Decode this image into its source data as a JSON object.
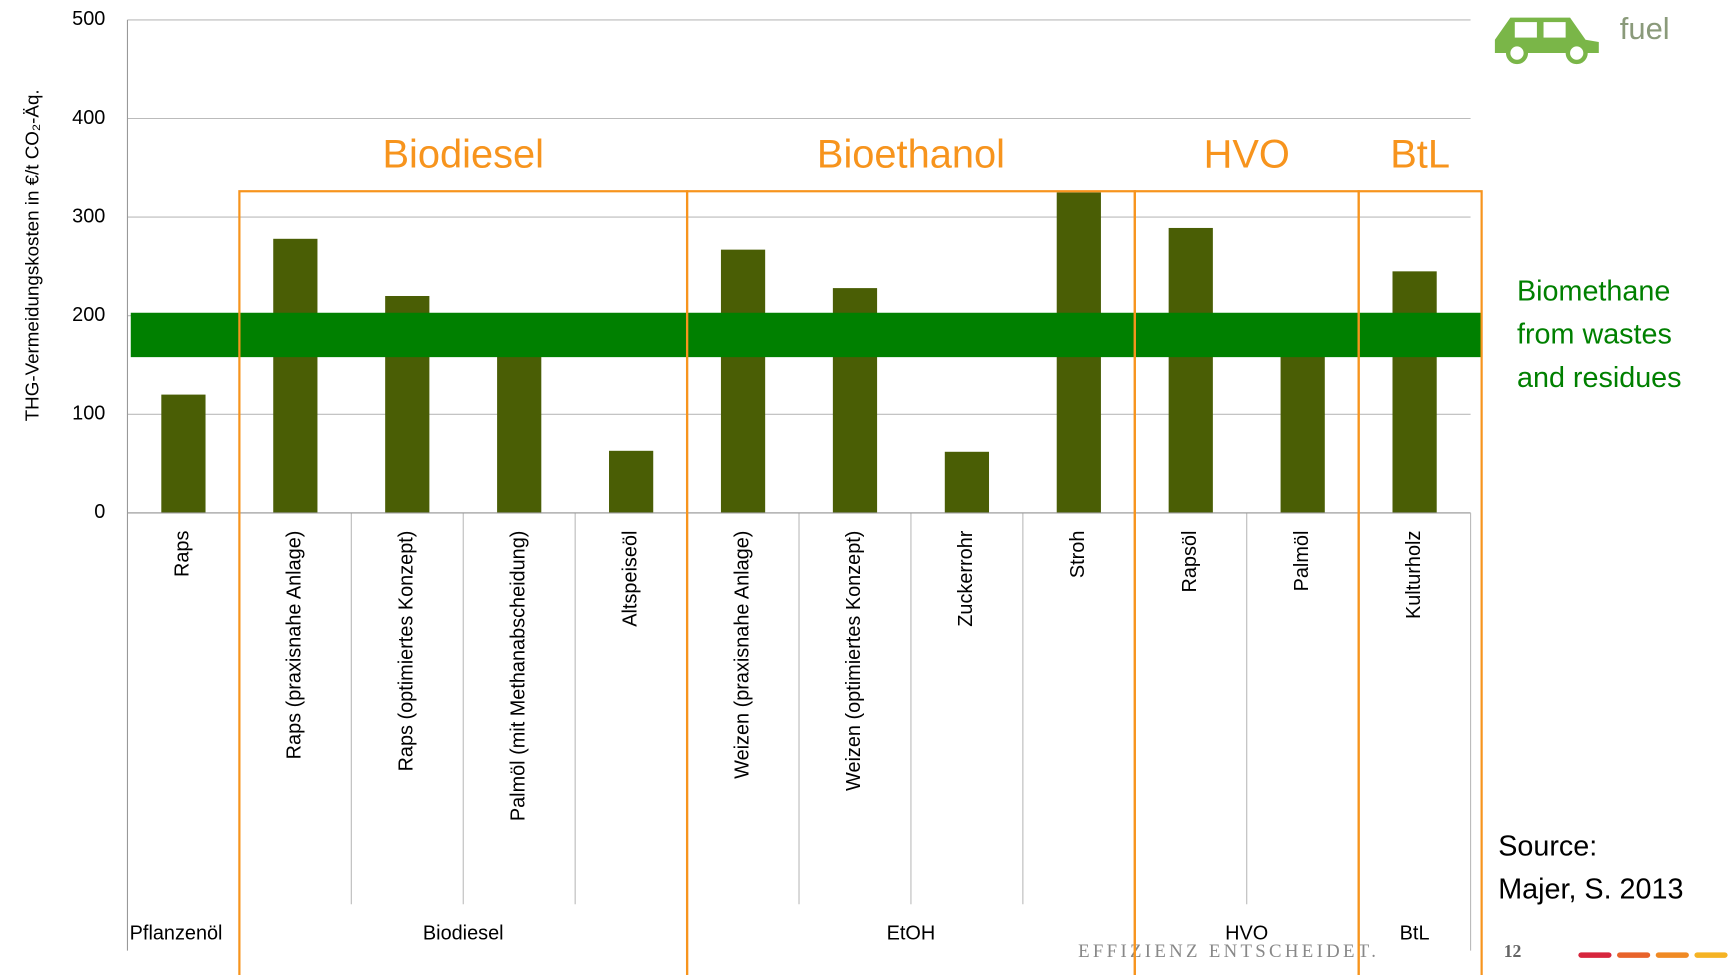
{
  "chart_data": {
    "type": "bar",
    "ylabel": "THG-Vermeidungskosten  in €/t CO₂-Äq.",
    "ylim": [
      0,
      500
    ],
    "yticks": [
      0,
      100,
      200,
      300,
      400,
      500
    ],
    "grid": true,
    "color": "#4a5e05",
    "groups": [
      {
        "label": "Pflanzenöl",
        "categories": [
          "Raps"
        ],
        "values": [
          120
        ]
      },
      {
        "label": "Biodiesel",
        "annotation": "Biodiesel",
        "categories": [
          "Raps (praxisnahe Anlage)",
          "Raps (optimiertes Konzept)",
          "Palmöl (mit Methanabscheidung)",
          "Altspeiseöl"
        ],
        "values": [
          278,
          220,
          170,
          63
        ]
      },
      {
        "label": "EtOH",
        "annotation": "Bioethanol",
        "categories": [
          "Weizen (praxisnahe Anlage)",
          "Weizen (optimiertes Konzept)",
          "Zuckerrohr",
          "Stroh"
        ],
        "values": [
          267,
          228,
          62,
          325
        ]
      },
      {
        "label": "HVO",
        "annotation": "HVO",
        "categories": [
          "Rapsöl",
          "Palmöl"
        ],
        "values": [
          289,
          170
        ]
      },
      {
        "label": "BtL",
        "annotation": "BtL",
        "categories": [
          "Kulturholz"
        ],
        "values": [
          245
        ]
      }
    ],
    "band": {
      "range": [
        158,
        203
      ],
      "color": "#008000",
      "label": [
        "Biomethane",
        "from wastes",
        "and residues"
      ]
    },
    "annotation_color": "#f7941d",
    "badge": "fuel",
    "source": [
      "Source:",
      "Majer, S. 2013"
    ],
    "footer": "EFFIZIENZ ENTSCHEIDET.",
    "page_number": "12"
  }
}
